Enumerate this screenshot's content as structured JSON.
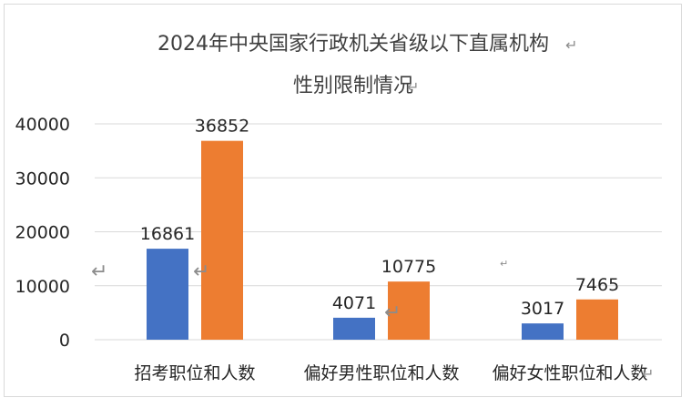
{
  "chart_data": {
    "type": "bar",
    "title_lines": [
      "2024年中央国家行政机关省级以下直属机构",
      "性别限制情况"
    ],
    "categories": [
      "招考职位和人数",
      "偏好男性职位和人数",
      "偏好女性职位和人数"
    ],
    "series": [
      {
        "values": [
          16861,
          4071,
          3017
        ],
        "color": "#4472C4"
      },
      {
        "values": [
          36852,
          10775,
          7465
        ],
        "color": "#ED7D31"
      }
    ],
    "ylim": [
      0,
      40000
    ],
    "yticks": [
      0,
      10000,
      20000,
      30000,
      40000
    ],
    "grid": true,
    "legend": "none"
  }
}
